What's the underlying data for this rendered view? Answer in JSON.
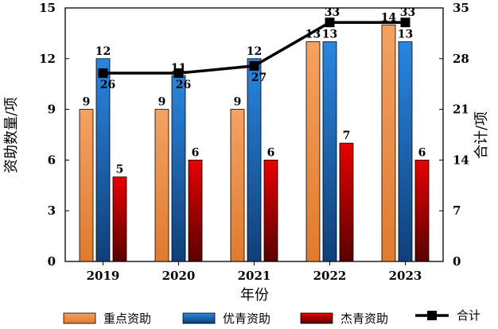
{
  "chart_data": {
    "type": "bar",
    "title": "",
    "xlabel": "年份",
    "ylabel": "资助数量/项",
    "y2label": "合计/项",
    "categories": [
      "2019",
      "2020",
      "2021",
      "2022",
      "2023"
    ],
    "ylim": [
      0,
      15
    ],
    "yticks": [
      "0",
      "3",
      "6",
      "9",
      "12",
      "15"
    ],
    "y2lim": [
      0,
      35
    ],
    "y2ticks": [
      "0",
      "7",
      "14",
      "21",
      "28",
      "35"
    ],
    "grid": false,
    "legend": "bottom",
    "series": [
      {
        "name": "重点资助",
        "kind": "bar",
        "axis": "left",
        "color": "#ED7D31",
        "values": [
          9,
          9,
          9,
          13,
          14
        ],
        "labels": [
          "9",
          "9",
          "9",
          "13",
          "14"
        ]
      },
      {
        "name": "优青资助",
        "kind": "bar",
        "axis": "left",
        "color": "#1F6FC5",
        "values": [
          12,
          11,
          12,
          13,
          13
        ],
        "labels": [
          "12",
          "11",
          "12",
          "13",
          "13"
        ]
      },
      {
        "name": "杰青资助",
        "kind": "bar",
        "axis": "left",
        "color": "#C00000",
        "values": [
          5,
          6,
          6,
          7,
          6
        ],
        "labels": [
          "5",
          "6",
          "6",
          "7",
          "6"
        ]
      },
      {
        "name": "合计",
        "kind": "line",
        "axis": "right",
        "color": "#000000",
        "values": [
          26,
          26,
          27,
          33,
          33
        ],
        "labels": [
          "26",
          "26",
          "27",
          "33",
          "33"
        ]
      }
    ]
  }
}
